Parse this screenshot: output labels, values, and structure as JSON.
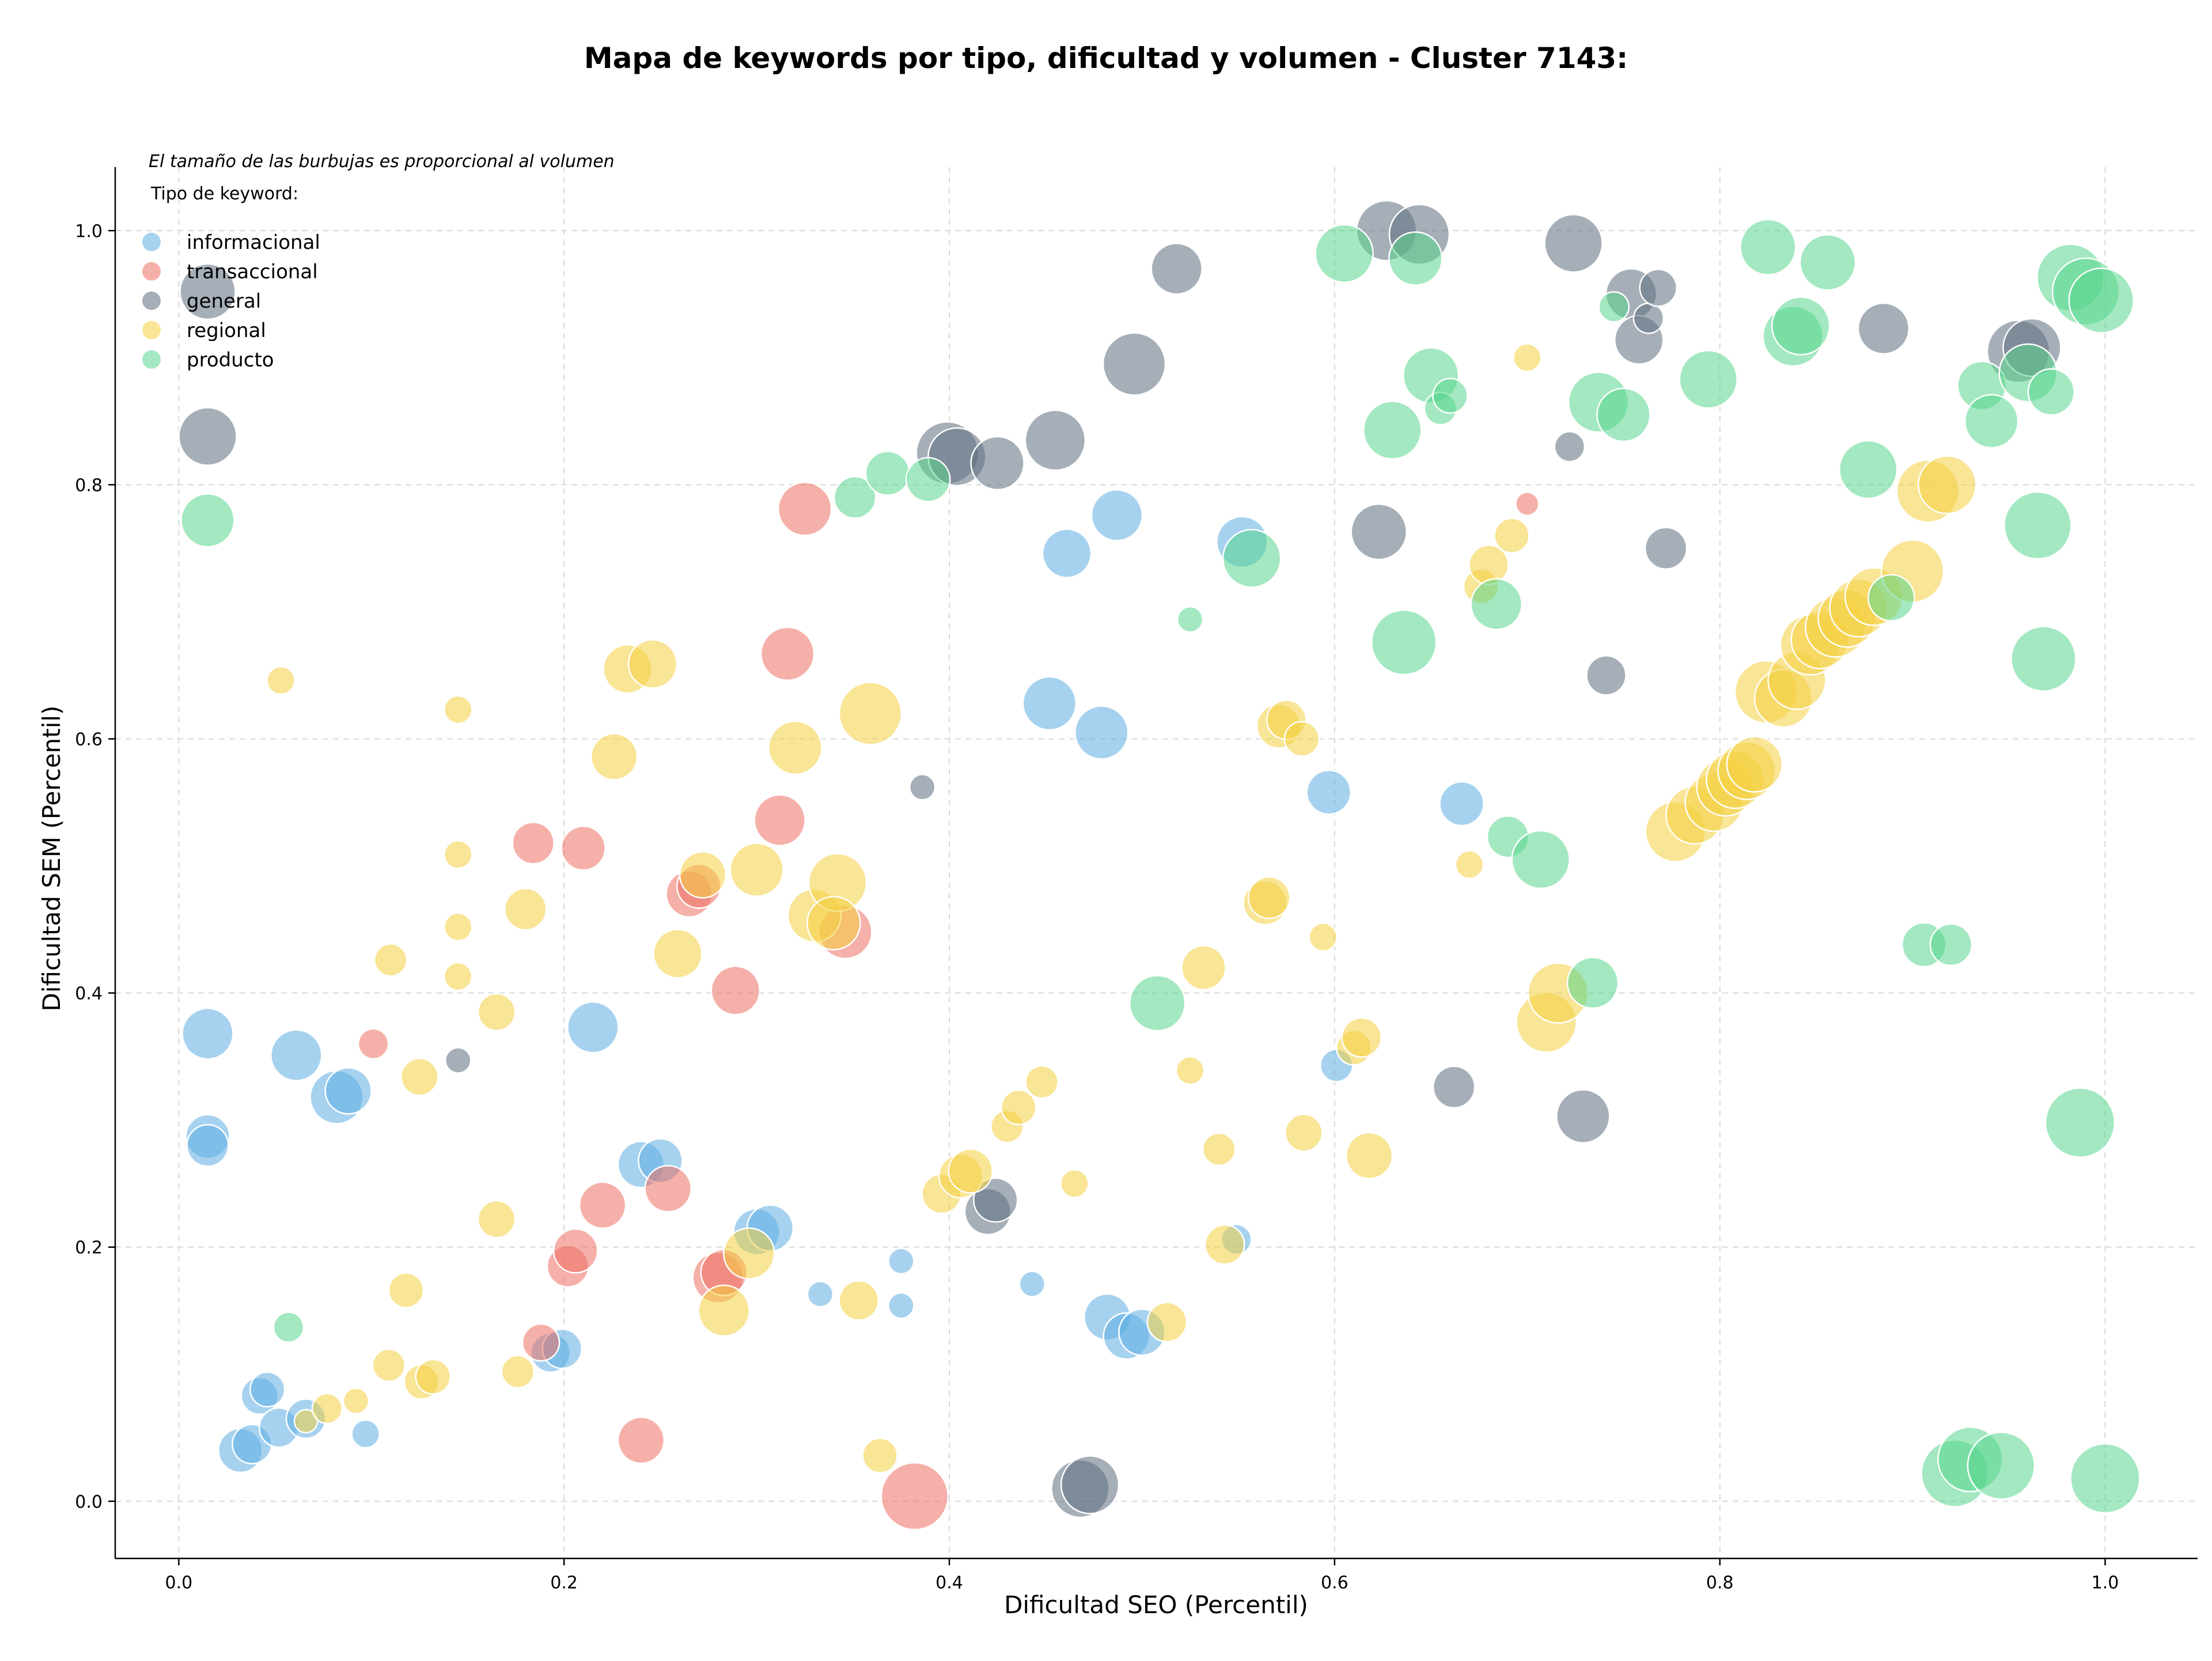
{
  "chart_data": {
    "type": "scatter",
    "title": "Mapa de keywords por tipo, dificultad y volumen - Cluster 7143:",
    "xlabel": "Dificultad SEO (Percentil)",
    "ylabel": "Dificultad SEM (Percentil)",
    "xlim": [
      -0.033,
      1.048
    ],
    "ylim": [
      -0.045,
      1.05
    ],
    "xticks": [
      "0.0",
      "0.2",
      "0.4",
      "0.6",
      "0.8",
      "1.0"
    ],
    "yticks": [
      "0.0",
      "0.2",
      "0.4",
      "0.6",
      "0.8",
      "1.0"
    ],
    "grid": true,
    "legend_placement": "top-left",
    "legend_note": "El tamaño de las burbujas es proporcional al volumen",
    "legend_title": "Tipo de keyword:",
    "bubble_opacity": 0.55,
    "series": [
      {
        "name": "informacional",
        "color": "#5DADE2",
        "points": [
          [
            0.015,
            0.368,
            44
          ],
          [
            0.015,
            0.287,
            38
          ],
          [
            0.015,
            0.28,
            36
          ],
          [
            0.061,
            0.351,
            44
          ],
          [
            0.082,
            0.318,
            46
          ],
          [
            0.088,
            0.323,
            40
          ],
          [
            0.032,
            0.04,
            38
          ],
          [
            0.038,
            0.045,
            34
          ],
          [
            0.042,
            0.083,
            32
          ],
          [
            0.046,
            0.088,
            30
          ],
          [
            0.052,
            0.058,
            34
          ],
          [
            0.066,
            0.065,
            34
          ],
          [
            0.097,
            0.053,
            24
          ],
          [
            0.193,
            0.117,
            34
          ],
          [
            0.199,
            0.12,
            34
          ],
          [
            0.215,
            0.373,
            44
          ],
          [
            0.24,
            0.265,
            40
          ],
          [
            0.25,
            0.268,
            38
          ],
          [
            0.3,
            0.212,
            40
          ],
          [
            0.307,
            0.215,
            40
          ],
          [
            0.333,
            0.163,
            22
          ],
          [
            0.375,
            0.189,
            22
          ],
          [
            0.375,
            0.154,
            22
          ],
          [
            0.443,
            0.171,
            22
          ],
          [
            0.452,
            0.628,
            46
          ],
          [
            0.461,
            0.746,
            42
          ],
          [
            0.479,
            0.605,
            46
          ],
          [
            0.487,
            0.776,
            44
          ],
          [
            0.482,
            0.145,
            40
          ],
          [
            0.492,
            0.13,
            40
          ],
          [
            0.5,
            0.133,
            40
          ],
          [
            0.552,
            0.755,
            44
          ],
          [
            0.549,
            0.206,
            26
          ],
          [
            0.597,
            0.558,
            38
          ],
          [
            0.601,
            0.343,
            28
          ],
          [
            0.666,
            0.549,
            38
          ]
        ]
      },
      {
        "name": "transaccional",
        "color": "#EC7063",
        "points": [
          [
            0.101,
            0.36,
            26
          ],
          [
            0.184,
            0.518,
            36
          ],
          [
            0.21,
            0.514,
            38
          ],
          [
            0.22,
            0.233,
            40
          ],
          [
            0.202,
            0.185,
            36
          ],
          [
            0.206,
            0.197,
            38
          ],
          [
            0.188,
            0.125,
            32
          ],
          [
            0.24,
            0.048,
            40
          ],
          [
            0.254,
            0.246,
            40
          ],
          [
            0.265,
            0.478,
            40
          ],
          [
            0.27,
            0.484,
            38
          ],
          [
            0.289,
            0.402,
            42
          ],
          [
            0.28,
            0.176,
            44
          ],
          [
            0.283,
            0.18,
            40
          ],
          [
            0.312,
            0.536,
            44
          ],
          [
            0.316,
            0.667,
            46
          ],
          [
            0.325,
            0.781,
            46
          ],
          [
            0.346,
            0.448,
            46
          ],
          [
            0.382,
            0.004,
            58
          ],
          [
            0.7,
            0.785,
            20
          ]
        ]
      },
      {
        "name": "general",
        "color": "#5D6D7E",
        "points": [
          [
            0.015,
            0.952,
            48
          ],
          [
            0.015,
            0.838,
            50
          ],
          [
            0.145,
            0.347,
            22
          ],
          [
            0.386,
            0.562,
            22
          ],
          [
            0.399,
            0.825,
            54
          ],
          [
            0.404,
            0.822,
            50
          ],
          [
            0.425,
            0.817,
            46
          ],
          [
            0.455,
            0.835,
            52
          ],
          [
            0.496,
            0.895,
            54
          ],
          [
            0.518,
            0.97,
            44
          ],
          [
            0.42,
            0.228,
            40
          ],
          [
            0.424,
            0.237,
            38
          ],
          [
            0.468,
            0.01,
            50
          ],
          [
            0.473,
            0.013,
            50
          ],
          [
            0.623,
            0.763,
            48
          ],
          [
            0.627,
            1.0,
            52
          ],
          [
            0.644,
            0.997,
            52
          ],
          [
            0.662,
            0.326,
            36
          ],
          [
            0.724,
            0.99,
            50
          ],
          [
            0.741,
            0.65,
            34
          ],
          [
            0.722,
            0.83,
            26
          ],
          [
            0.729,
            0.303,
            46
          ],
          [
            0.754,
            0.95,
            44
          ],
          [
            0.758,
            0.914,
            42
          ],
          [
            0.763,
            0.931,
            26
          ],
          [
            0.768,
            0.955,
            32
          ],
          [
            0.772,
            0.75,
            36
          ],
          [
            0.885,
            0.923,
            44
          ],
          [
            0.955,
            0.905,
            54
          ],
          [
            0.962,
            0.908,
            50
          ]
        ]
      },
      {
        "name": "regional",
        "color": "#F4D03F",
        "points": [
          [
            0.053,
            0.646,
            24
          ],
          [
            0.066,
            0.063,
            20
          ],
          [
            0.077,
            0.073,
            26
          ],
          [
            0.092,
            0.079,
            22
          ],
          [
            0.109,
            0.107,
            28
          ],
          [
            0.11,
            0.426,
            28
          ],
          [
            0.118,
            0.166,
            30
          ],
          [
            0.125,
            0.334,
            32
          ],
          [
            0.126,
            0.094,
            30
          ],
          [
            0.132,
            0.098,
            30
          ],
          [
            0.145,
            0.623,
            24
          ],
          [
            0.145,
            0.509,
            24
          ],
          [
            0.145,
            0.452,
            24
          ],
          [
            0.145,
            0.413,
            24
          ],
          [
            0.165,
            0.385,
            32
          ],
          [
            0.165,
            0.222,
            32
          ],
          [
            0.176,
            0.102,
            28
          ],
          [
            0.18,
            0.466,
            36
          ],
          [
            0.226,
            0.586,
            40
          ],
          [
            0.233,
            0.655,
            42
          ],
          [
            0.246,
            0.659,
            42
          ],
          [
            0.259,
            0.431,
            42
          ],
          [
            0.272,
            0.493,
            40
          ],
          [
            0.283,
            0.15,
            44
          ],
          [
            0.296,
            0.195,
            44
          ],
          [
            0.3,
            0.497,
            46
          ],
          [
            0.32,
            0.593,
            46
          ],
          [
            0.33,
            0.461,
            46
          ],
          [
            0.342,
            0.487,
            50
          ],
          [
            0.34,
            0.455,
            46
          ],
          [
            0.353,
            0.158,
            34
          ],
          [
            0.359,
            0.62,
            54
          ],
          [
            0.364,
            0.036,
            30
          ],
          [
            0.396,
            0.242,
            34
          ],
          [
            0.406,
            0.256,
            38
          ],
          [
            0.411,
            0.26,
            38
          ],
          [
            0.43,
            0.295,
            28
          ],
          [
            0.436,
            0.31,
            30
          ],
          [
            0.448,
            0.33,
            28
          ],
          [
            0.465,
            0.25,
            24
          ],
          [
            0.513,
            0.141,
            34
          ],
          [
            0.525,
            0.339,
            24
          ],
          [
            0.532,
            0.42,
            38
          ],
          [
            0.54,
            0.277,
            28
          ],
          [
            0.543,
            0.202,
            34
          ],
          [
            0.564,
            0.471,
            38
          ],
          [
            0.566,
            0.475,
            36
          ],
          [
            0.571,
            0.61,
            38
          ],
          [
            0.575,
            0.615,
            34
          ],
          [
            0.583,
            0.6,
            30
          ],
          [
            0.584,
            0.29,
            32
          ],
          [
            0.594,
            0.444,
            24
          ],
          [
            0.61,
            0.357,
            30
          ],
          [
            0.614,
            0.365,
            34
          ],
          [
            0.618,
            0.272,
            40
          ],
          [
            0.67,
            0.501,
            24
          ],
          [
            0.676,
            0.72,
            30
          ],
          [
            0.68,
            0.737,
            34
          ],
          [
            0.692,
            0.76,
            30
          ],
          [
            0.7,
            0.9,
            24
          ],
          [
            0.71,
            0.377,
            52
          ],
          [
            0.716,
            0.4,
            52
          ],
          [
            0.777,
            0.527,
            52
          ],
          [
            0.787,
            0.54,
            50
          ],
          [
            0.797,
            0.55,
            50
          ],
          [
            0.803,
            0.562,
            50
          ],
          [
            0.808,
            0.568,
            50
          ],
          [
            0.814,
            0.575,
            50
          ],
          [
            0.818,
            0.58,
            48
          ],
          [
            0.824,
            0.637,
            54
          ],
          [
            0.833,
            0.632,
            50
          ],
          [
            0.84,
            0.646,
            50
          ],
          [
            0.847,
            0.674,
            52
          ],
          [
            0.852,
            0.678,
            50
          ],
          [
            0.86,
            0.688,
            52
          ],
          [
            0.866,
            0.695,
            50
          ],
          [
            0.872,
            0.703,
            50
          ],
          [
            0.88,
            0.712,
            50
          ],
          [
            0.9,
            0.732,
            54
          ],
          [
            0.908,
            0.795,
            54
          ],
          [
            0.918,
            0.8,
            50
          ]
        ]
      },
      {
        "name": "producto",
        "color": "#58D68D",
        "points": [
          [
            0.015,
            0.772,
            46
          ],
          [
            0.057,
            0.137,
            26
          ],
          [
            0.351,
            0.79,
            36
          ],
          [
            0.368,
            0.809,
            38
          ],
          [
            0.389,
            0.804,
            38
          ],
          [
            0.508,
            0.392,
            48
          ],
          [
            0.525,
            0.694,
            22
          ],
          [
            0.557,
            0.742,
            50
          ],
          [
            0.605,
            0.982,
            50
          ],
          [
            0.63,
            0.843,
            50
          ],
          [
            0.636,
            0.676,
            56
          ],
          [
            0.642,
            0.978,
            46
          ],
          [
            0.65,
            0.886,
            48
          ],
          [
            0.655,
            0.86,
            28
          ],
          [
            0.66,
            0.87,
            30
          ],
          [
            0.684,
            0.706,
            44
          ],
          [
            0.69,
            0.523,
            36
          ],
          [
            0.707,
            0.505,
            50
          ],
          [
            0.734,
            0.408,
            44
          ],
          [
            0.737,
            0.865,
            52
          ],
          [
            0.745,
            0.94,
            26
          ],
          [
            0.75,
            0.855,
            46
          ],
          [
            0.794,
            0.883,
            50
          ],
          [
            0.825,
            0.987,
            48
          ],
          [
            0.838,
            0.917,
            52
          ],
          [
            0.842,
            0.925,
            50
          ],
          [
            0.856,
            0.975,
            48
          ],
          [
            0.877,
            0.812,
            50
          ],
          [
            0.889,
            0.711,
            40
          ],
          [
            0.906,
            0.438,
            38
          ],
          [
            0.92,
            0.438,
            36
          ],
          [
            0.922,
            0.022,
            58
          ],
          [
            0.93,
            0.033,
            56
          ],
          [
            0.936,
            0.878,
            42
          ],
          [
            0.941,
            0.85,
            46
          ],
          [
            0.946,
            0.028,
            58
          ],
          [
            0.96,
            0.888,
            50
          ],
          [
            0.965,
            0.768,
            58
          ],
          [
            0.968,
            0.663,
            56
          ],
          [
            0.972,
            0.873,
            40
          ],
          [
            0.982,
            0.963,
            58
          ],
          [
            0.987,
            0.298,
            60
          ],
          [
            0.99,
            0.952,
            58
          ],
          [
            0.998,
            0.945,
            56
          ],
          [
            1.0,
            0.018,
            60
          ]
        ]
      }
    ]
  }
}
